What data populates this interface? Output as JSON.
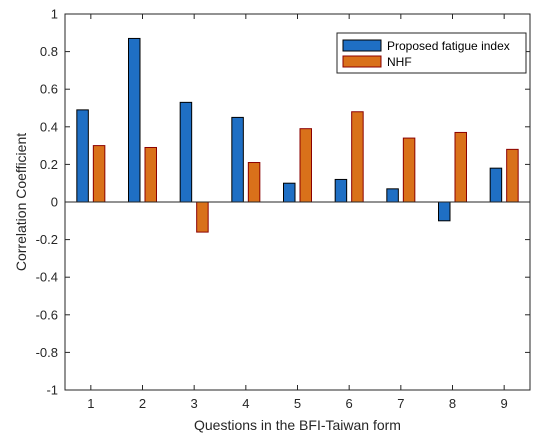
{
  "chart_data": {
    "type": "bar",
    "title": "",
    "xlabel": "Questions in the BFI-Taiwan form",
    "ylabel": "Correlation Coefficient",
    "categories": [
      "1",
      "2",
      "3",
      "4",
      "5",
      "6",
      "7",
      "8",
      "9"
    ],
    "ylim": [
      -1,
      1
    ],
    "yticks": [
      -1,
      -0.8,
      -0.6,
      -0.4,
      -0.2,
      0,
      0.2,
      0.4,
      0.6,
      0.8,
      1
    ],
    "ytick_labels": [
      "-1",
      "-0.8",
      "-0.6",
      "-0.4",
      "-0.2",
      "0",
      "0.2",
      "0.4",
      "0.6",
      "0.8",
      "1"
    ],
    "grid": false,
    "legend_position": "top-right",
    "series": [
      {
        "name": "Proposed fatigue index",
        "color": "#1f6fc4",
        "edge_color": "#000000",
        "values": [
          0.49,
          0.87,
          0.53,
          0.45,
          0.1,
          0.12,
          0.07,
          -0.1,
          0.18
        ]
      },
      {
        "name": "NHF",
        "color": "#d9711a",
        "edge_color": "#8b0000",
        "values": [
          0.3,
          0.29,
          -0.16,
          0.21,
          0.39,
          0.48,
          0.34,
          0.37,
          0.28
        ]
      }
    ]
  }
}
